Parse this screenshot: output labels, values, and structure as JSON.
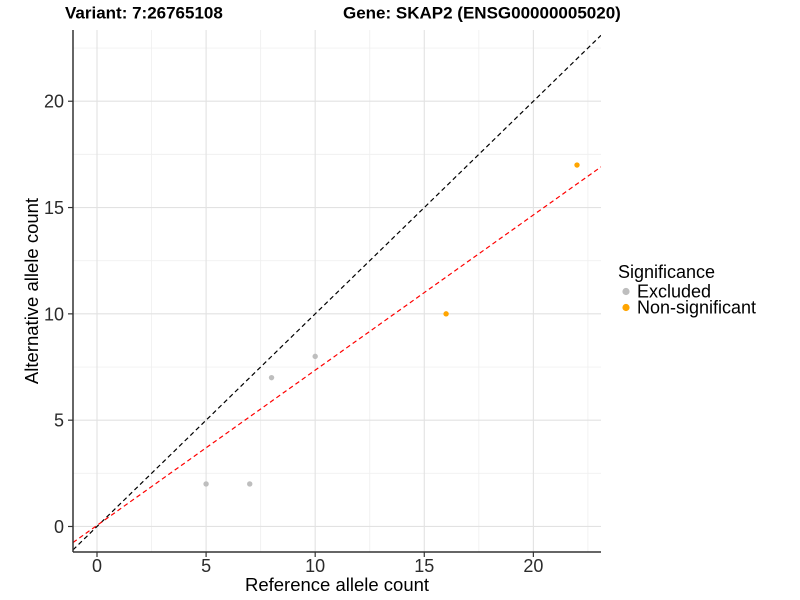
{
  "chart_data": {
    "type": "scatter",
    "title_left": "Variant: 7:26765108",
    "title_right": "Gene: SKAP2 (ENSG00000005020)",
    "xlabel": "Reference allele count",
    "ylabel": "Alternative allele count",
    "xlim": [
      -1.1,
      23.1
    ],
    "ylim": [
      -1.2,
      23.35
    ],
    "x_major_ticks": [
      0,
      5,
      10,
      15,
      20
    ],
    "y_major_ticks": [
      0,
      5,
      10,
      15,
      20
    ],
    "x_minor_ticks": [
      2.5,
      7.5,
      12.5,
      17.5,
      22.5
    ],
    "y_minor_ticks": [
      2.5,
      7.5,
      12.5,
      17.5,
      22.5
    ],
    "grid": true,
    "series": [
      {
        "name": "Excluded",
        "color": "#BEBEBE",
        "points": [
          [
            5,
            2
          ],
          [
            7,
            2
          ],
          [
            8,
            7
          ],
          [
            10,
            8
          ]
        ]
      },
      {
        "name": "Non-significant",
        "color": "#FFA500",
        "points": [
          [
            16,
            10
          ],
          [
            22,
            17
          ]
        ]
      }
    ],
    "lines": [
      {
        "name": "identity-line",
        "slope": 1,
        "intercept": 0,
        "color": "#000000",
        "style": "dashed"
      },
      {
        "name": "fit-line",
        "slope": 0.73,
        "intercept": 0.05,
        "color": "#FF0000",
        "style": "dashed"
      }
    ],
    "legend": {
      "title": "Significance",
      "position": "right",
      "entries": [
        {
          "label": "Excluded",
          "color": "#BEBEBE"
        },
        {
          "label": "Non-significant",
          "color": "#FFA500"
        }
      ]
    }
  },
  "colors": {
    "background": "#FFFFFF",
    "grid_major": "#E2E2E2",
    "grid_minor": "#F0F0F0",
    "axis": "#333333",
    "tick_text": "#2b2b2b"
  }
}
